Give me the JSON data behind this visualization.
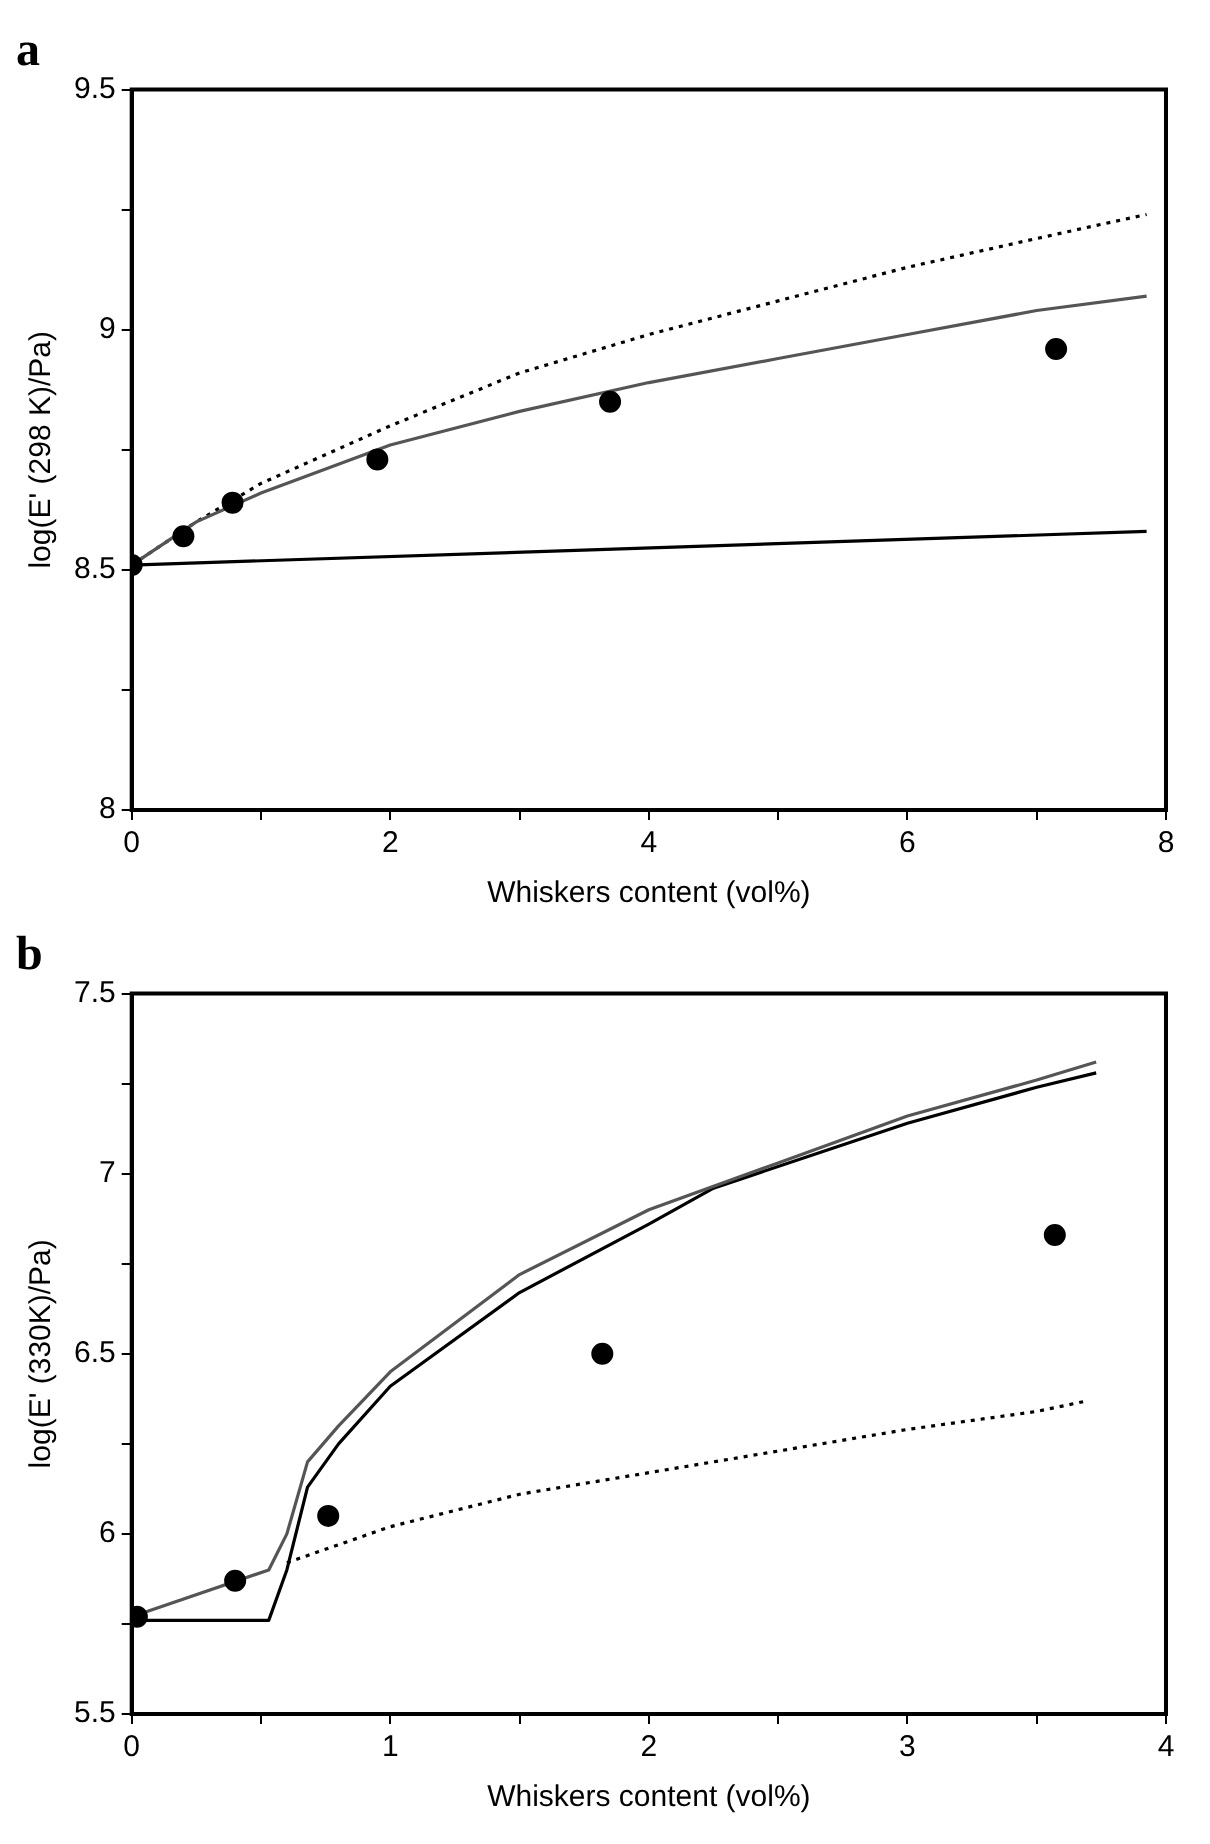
{
  "chart_data": [
    {
      "type": "line",
      "title": "a",
      "xlabel": "Whiskers content (vol%)",
      "ylabel": "log(E' (298 K)/Pa)",
      "xlim": [
        0,
        8
      ],
      "ylim": [
        8,
        9.5
      ],
      "xticks": [
        0,
        {
          "value": 1,
          "label": null
        },
        2,
        {
          "value": 3,
          "label": null
        },
        4,
        {
          "value": 5,
          "label": null
        },
        6,
        {
          "value": 7,
          "label": null
        },
        8
      ],
      "yticks": [
        8,
        {
          "value": 8.25,
          "label": null
        },
        8.5,
        {
          "value": 8.75,
          "label": null
        },
        9,
        {
          "value": 9.25,
          "label": null
        },
        9.5
      ],
      "series": [
        {
          "type": "scatter",
          "color": "#000000",
          "marker": "circle",
          "x": [
            0,
            0.4,
            0.78,
            1.9,
            3.7,
            7.15
          ],
          "values": [
            8.51,
            8.57,
            8.64,
            8.73,
            8.85,
            8.96
          ]
        },
        {
          "color": "#555555",
          "marker": "none",
          "line_style": "solid",
          "x": [
            0,
            0.5,
            1,
            2,
            3,
            4,
            5,
            6,
            7,
            7.85
          ],
          "values": [
            8.51,
            8.6,
            8.66,
            8.76,
            8.83,
            8.89,
            8.94,
            8.99,
            9.04,
            9.07
          ]
        },
        {
          "color": "#000000",
          "marker": "none",
          "line_style": "dotted",
          "x": [
            0,
            0.5,
            1,
            2,
            3,
            4,
            5,
            6,
            7,
            7.85
          ],
          "values": [
            8.51,
            8.6,
            8.68,
            8.8,
            8.91,
            8.99,
            9.06,
            9.13,
            9.19,
            9.24
          ]
        },
        {
          "color": "#000000",
          "marker": "none",
          "line_style": "solid",
          "x": [
            0,
            7.85
          ],
          "values": [
            8.51,
            8.58
          ]
        }
      ]
    },
    {
      "type": "line",
      "title": "b",
      "xlabel": "Whiskers content (vol%)",
      "ylabel": "log(E' (330K)/Pa)",
      "xlim": [
        0,
        4
      ],
      "ylim": [
        5.5,
        7.5
      ],
      "xticks": [
        0,
        {
          "value": 0.5,
          "label": null
        },
        1,
        {
          "value": 1.5,
          "label": null
        },
        2,
        {
          "value": 2.5,
          "label": null
        },
        3,
        {
          "value": 3.5,
          "label": null
        },
        4
      ],
      "yticks": [
        5.5,
        {
          "value": 5.75,
          "label": null
        },
        6,
        {
          "value": 6.25,
          "label": null
        },
        6.5,
        {
          "value": 6.75,
          "label": null
        },
        7,
        {
          "value": 7.25,
          "label": null
        },
        7.5
      ],
      "series": [
        {
          "type": "scatter",
          "color": "#000000",
          "marker": "circle",
          "x": [
            0.02,
            0.4,
            0.76,
            1.82,
            3.57
          ],
          "values": [
            5.77,
            5.87,
            6.05,
            6.5,
            6.83
          ]
        },
        {
          "color": "#555555",
          "marker": "none",
          "line_style": "solid",
          "x": [
            0,
            0.53,
            0.6,
            0.68,
            0.8,
            1,
            1.5,
            2,
            2.5,
            3,
            3.5,
            3.73
          ],
          "values": [
            5.77,
            5.9,
            6.0,
            6.2,
            6.3,
            6.45,
            6.72,
            6.9,
            7.03,
            7.16,
            7.26,
            7.31
          ]
        },
        {
          "color": "#000000",
          "marker": "none",
          "line_style": "solid",
          "x": [
            0,
            0.53,
            0.6,
            0.68,
            0.8,
            1,
            1.5,
            2,
            2.25,
            3,
            3.5,
            3.73
          ],
          "values": [
            5.76,
            5.76,
            5.9,
            6.13,
            6.25,
            6.41,
            6.67,
            6.86,
            6.96,
            7.14,
            7.24,
            7.28
          ]
        },
        {
          "color": "#000000",
          "marker": "none",
          "line_style": "dotted",
          "x": [
            0.6,
            1,
            1.5,
            2,
            2.5,
            3,
            3.5,
            3.7
          ],
          "values": [
            5.92,
            6.02,
            6.11,
            6.17,
            6.23,
            6.29,
            6.34,
            6.37
          ]
        }
      ]
    }
  ]
}
